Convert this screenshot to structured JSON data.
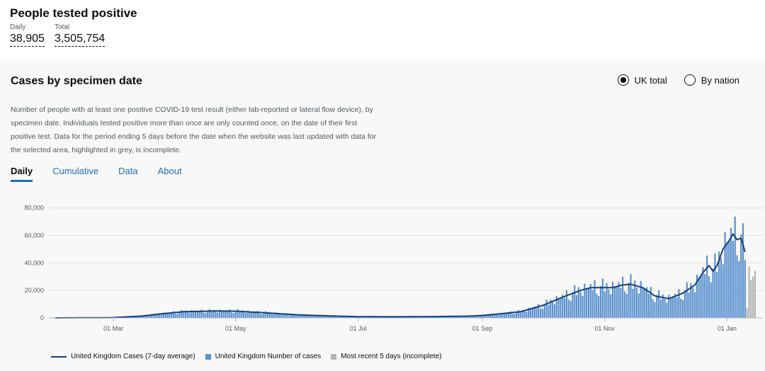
{
  "headline": {
    "title": "People tested positive",
    "daily_label": "Daily",
    "daily_value": "38,905",
    "total_label": "Total",
    "total_value": "3,505,754"
  },
  "card": {
    "title": "Cases by specimen date",
    "radios": [
      {
        "label": "UK total",
        "selected": true
      },
      {
        "label": "By nation",
        "selected": false
      }
    ],
    "description": "Number of people with at least one positive COVID-19 test result (either lab-reported or lateral flow device), by specimen date. Individuals tested positive more than once are only counted once, on the date of their first positive test. Data for the period ending 5 days before the date when the website was last updated with data for the selected area, highlighted in grey, is incomplete.",
    "tabs": [
      {
        "label": "Daily",
        "active": true
      },
      {
        "label": "Cumulative",
        "active": false
      },
      {
        "label": "Data",
        "active": false
      },
      {
        "label": "About",
        "active": false
      }
    ]
  },
  "colors": {
    "bars": "#5b92cf",
    "incomplete": "#b1b4b6",
    "average_line": "#12407f",
    "link": "#1d70b8"
  },
  "chart_data": {
    "type": "bar",
    "x_start": "2020-02-01",
    "x_end": "2021-01-15",
    "ylim": [
      0,
      85000
    ],
    "y_ticks": [
      "0",
      "20,000",
      "40,000",
      "60,000",
      "80,000"
    ],
    "x_ticks": [
      {
        "date": "2020-03-01",
        "label": "01 Mar"
      },
      {
        "date": "2020-05-01",
        "label": "01 May"
      },
      {
        "date": "2020-07-01",
        "label": "01 Jul"
      },
      {
        "date": "2020-09-01",
        "label": "01 Sep"
      },
      {
        "date": "2020-11-01",
        "label": "01 Nov"
      },
      {
        "date": "2021-01-01",
        "label": "01 Jan"
      }
    ],
    "incomplete_days": 5,
    "series": [
      {
        "name": "United Kingdom Cases (7-day average)"
      },
      {
        "name": "United Kingdom Number of cases"
      },
      {
        "name": "Most recent 5 days (incomplete)"
      }
    ],
    "anchors": [
      [
        "2020-02-01",
        0
      ],
      [
        "2020-02-29",
        200
      ],
      [
        "2020-03-15",
        1300
      ],
      [
        "2020-03-25",
        3000
      ],
      [
        "2020-04-05",
        4500
      ],
      [
        "2020-04-20",
        5000
      ],
      [
        "2020-05-01",
        4900
      ],
      [
        "2020-05-15",
        3800
      ],
      [
        "2020-06-01",
        2200
      ],
      [
        "2020-06-20",
        1300
      ],
      [
        "2020-07-01",
        900
      ],
      [
        "2020-07-20",
        800
      ],
      [
        "2020-08-10",
        1000
      ],
      [
        "2020-08-25",
        1300
      ],
      [
        "2020-09-01",
        1800
      ],
      [
        "2020-09-10",
        3000
      ],
      [
        "2020-09-20",
        4500
      ],
      [
        "2020-10-01",
        9000
      ],
      [
        "2020-10-10",
        14500
      ],
      [
        "2020-10-20",
        20000
      ],
      [
        "2020-10-25",
        22000
      ],
      [
        "2020-11-05",
        22000
      ],
      [
        "2020-11-10",
        24000
      ],
      [
        "2020-11-14",
        24500
      ],
      [
        "2020-11-20",
        22000
      ],
      [
        "2020-11-26",
        16000
      ],
      [
        "2020-12-03",
        14000
      ],
      [
        "2020-12-10",
        18000
      ],
      [
        "2020-12-16",
        24000
      ],
      [
        "2020-12-20",
        33000
      ],
      [
        "2020-12-23",
        38000
      ],
      [
        "2020-12-25",
        34000
      ],
      [
        "2020-12-27",
        38000
      ],
      [
        "2020-12-30",
        50000
      ],
      [
        "2021-01-02",
        56000
      ],
      [
        "2021-01-04",
        61000
      ],
      [
        "2021-01-06",
        57000
      ],
      [
        "2021-01-08",
        58000
      ],
      [
        "2021-01-10",
        48000
      ],
      [
        "2021-01-15",
        38000
      ]
    ]
  },
  "legend": [
    {
      "label": "United Kingdom Cases (7-day average)",
      "kind": "line"
    },
    {
      "label": "United Kingdom Number of cases",
      "kind": "bar"
    },
    {
      "label": "Most recent 5 days (incomplete)",
      "kind": "incomplete"
    }
  ]
}
